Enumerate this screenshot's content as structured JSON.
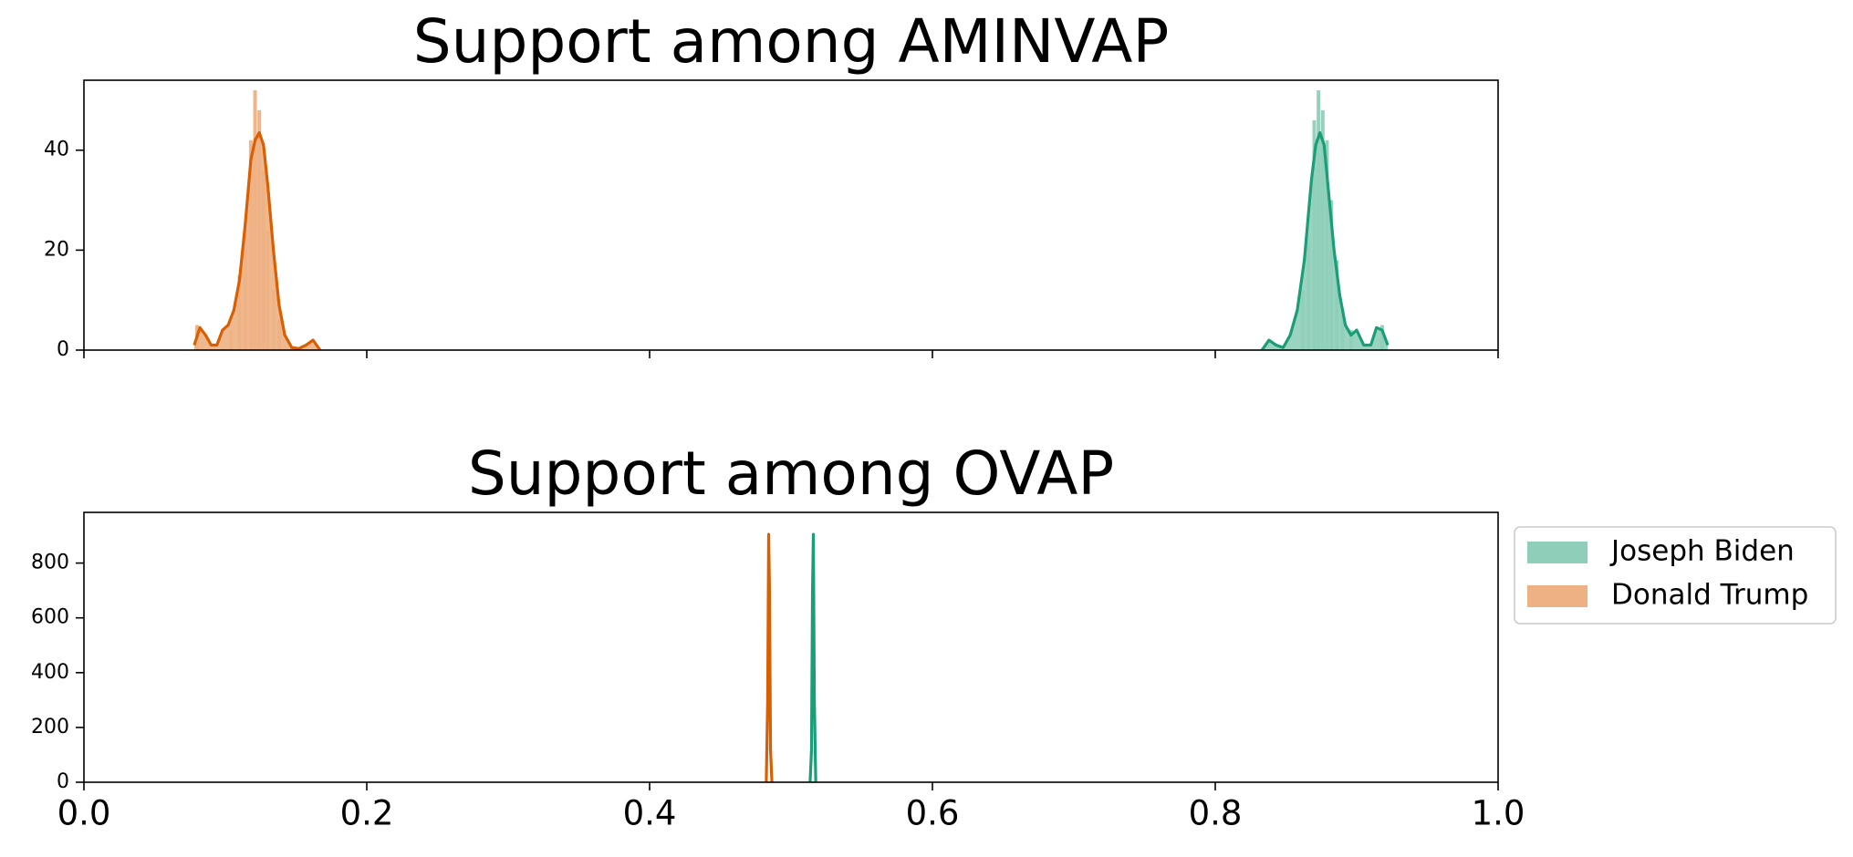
{
  "chart_data": [
    {
      "type": "histogram+kde",
      "title": "Support among AMINVAP",
      "xlim": [
        0.0,
        1.0
      ],
      "ylim": [
        0,
        54
      ],
      "xticks": [
        0.0,
        0.2,
        0.4,
        0.6,
        0.8,
        1.0
      ],
      "xtick_labels_visible": false,
      "yticks": [
        0,
        20,
        40
      ],
      "ytick_labels": [
        "0",
        "20",
        "40"
      ],
      "series": [
        {
          "name": "Joseph Biden",
          "color": "#1b9e77",
          "kde_x": [
            0.833,
            0.838,
            0.843,
            0.848,
            0.853,
            0.858,
            0.863,
            0.868,
            0.871,
            0.874,
            0.877,
            0.88,
            0.884,
            0.888,
            0.892,
            0.896,
            0.9,
            0.905,
            0.91,
            0.914,
            0.918,
            0.922
          ],
          "kde_y": [
            0,
            2,
            1,
            0.5,
            3,
            8,
            18,
            34,
            41,
            43.5,
            41,
            32,
            20,
            11,
            5,
            3,
            4,
            1,
            1,
            4.5,
            4,
            1
          ],
          "hist_x": [
            0.862,
            0.866,
            0.87,
            0.873,
            0.876,
            0.879,
            0.882,
            0.886,
            0.89,
            0.896,
            0.918
          ],
          "hist_y": [
            12,
            22,
            46,
            52,
            48,
            42,
            30,
            18,
            8,
            4,
            5
          ]
        },
        {
          "name": "Donald Trump",
          "color": "#d95f02",
          "kde_x": [
            0.078,
            0.082,
            0.086,
            0.09,
            0.094,
            0.098,
            0.102,
            0.106,
            0.11,
            0.114,
            0.118,
            0.121,
            0.124,
            0.127,
            0.13,
            0.134,
            0.138,
            0.142,
            0.147,
            0.152,
            0.157,
            0.162,
            0.167
          ],
          "kde_y": [
            1,
            4.5,
            3,
            1,
            1,
            4,
            5,
            8,
            14,
            25,
            38,
            42,
            43.5,
            41,
            33,
            20,
            9,
            3,
            0.5,
            0.3,
            1,
            2,
            0
          ],
          "hist_x": [
            0.08,
            0.104,
            0.11,
            0.114,
            0.118,
            0.121,
            0.124,
            0.127,
            0.13,
            0.134,
            0.138
          ],
          "hist_y": [
            5,
            4,
            15,
            24,
            42,
            52,
            48,
            36,
            24,
            12,
            6
          ]
        }
      ]
    },
    {
      "type": "histogram+kde",
      "title": "Support among OVAP",
      "xlim": [
        0.0,
        1.0
      ],
      "ylim": [
        0,
        985
      ],
      "xticks": [
        0.0,
        0.2,
        0.4,
        0.6,
        0.8,
        1.0
      ],
      "xtick_labels": [
        "0.0",
        "0.2",
        "0.4",
        "0.6",
        "0.8",
        "1.0"
      ],
      "yticks": [
        0,
        200,
        400,
        600,
        800
      ],
      "ytick_labels": [
        "0",
        "200",
        "400",
        "600",
        "800"
      ],
      "series": [
        {
          "name": "Joseph Biden",
          "color": "#1b9e77",
          "kde_x": [
            0.5135,
            0.5145,
            0.5152,
            0.5158,
            0.5165,
            0.5175
          ],
          "kde_y": [
            0,
            120,
            700,
            905,
            300,
            0
          ]
        },
        {
          "name": "Donald Trump",
          "color": "#d95f02",
          "kde_x": [
            0.4825,
            0.4835,
            0.4842,
            0.4848,
            0.4855,
            0.4865
          ],
          "kde_y": [
            0,
            300,
            905,
            700,
            120,
            0
          ]
        }
      ]
    }
  ],
  "legend": {
    "placement": "right of lower panel",
    "items": [
      {
        "label": "Joseph Biden",
        "color": "#8fcfb9"
      },
      {
        "label": "Donald Trump",
        "color": "#edb184"
      }
    ]
  }
}
